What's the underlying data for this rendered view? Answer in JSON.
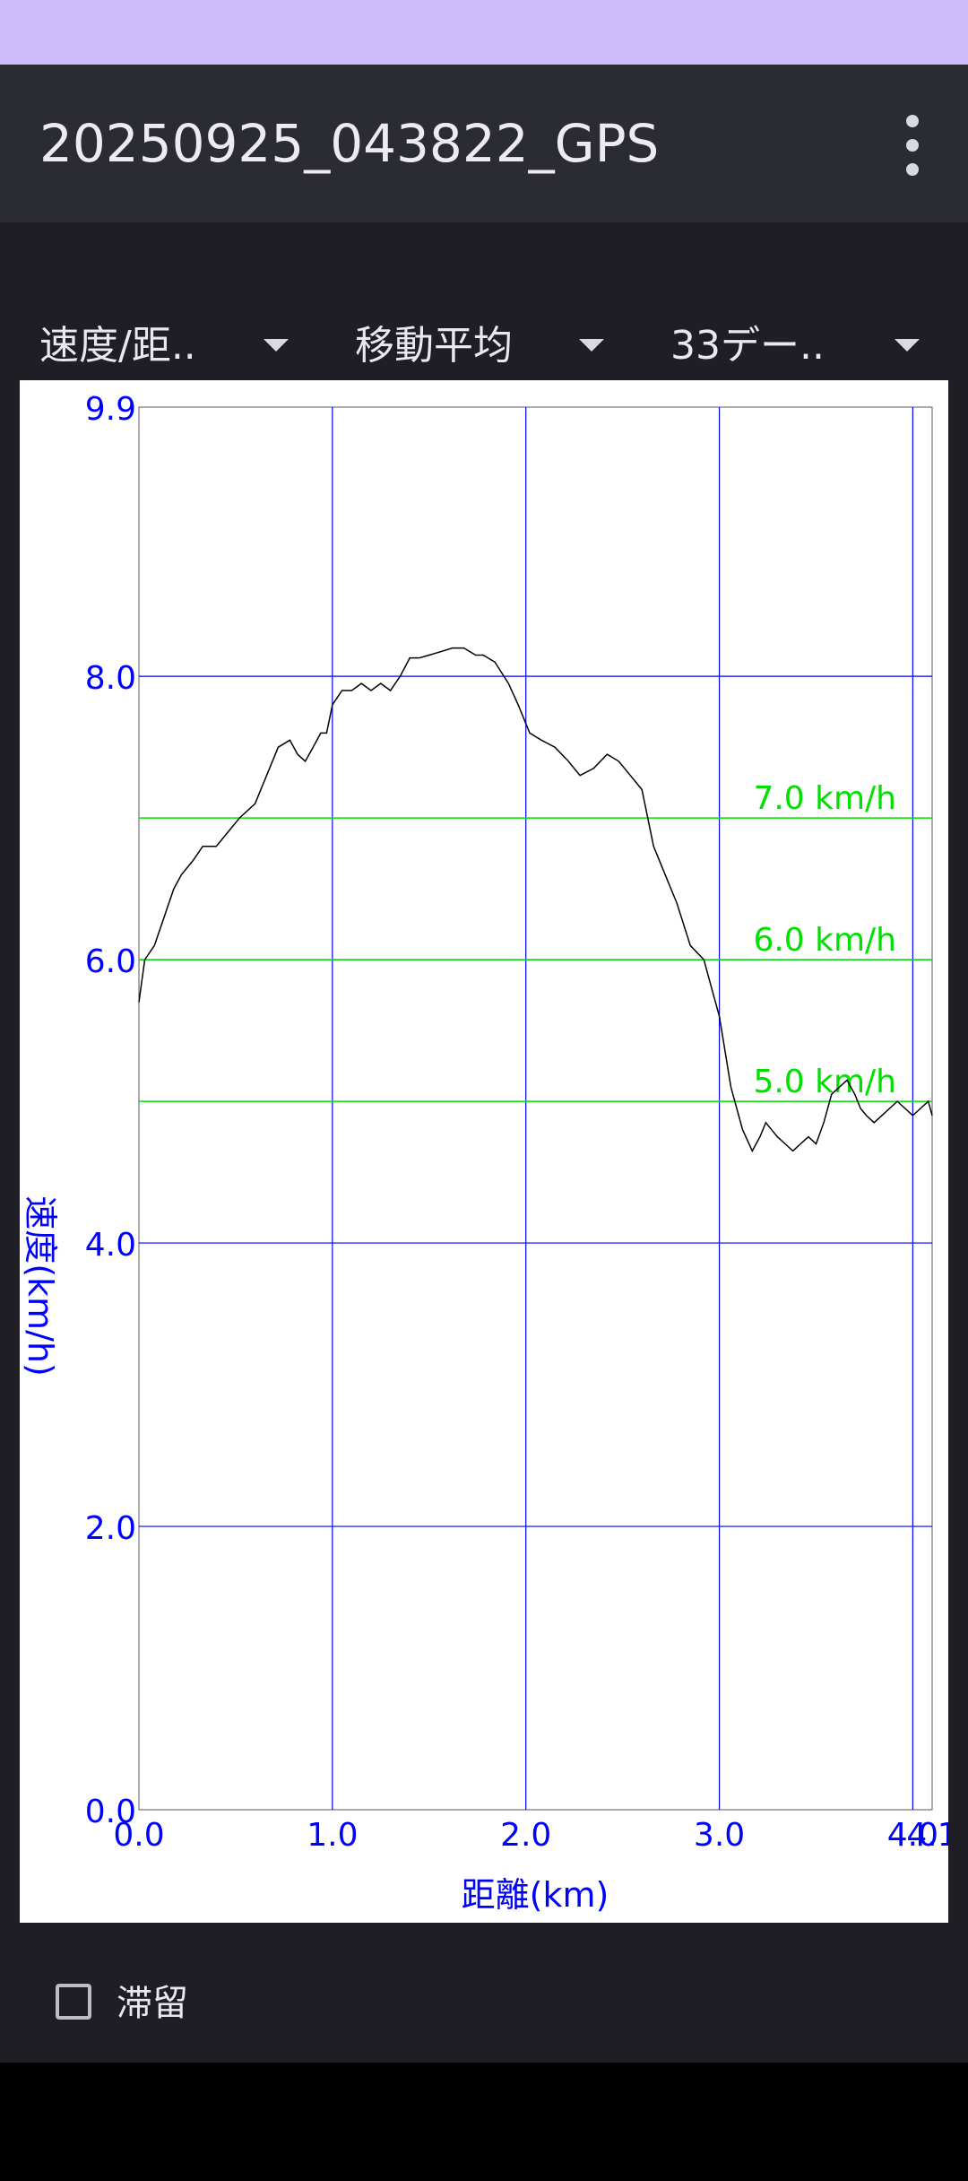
{
  "app_bar": {
    "title": "20250925_043822_GPS",
    "menu_icon": "more-vert-icon"
  },
  "spinners": [
    {
      "label": "速度/距.."
    },
    {
      "label": "移動平均"
    },
    {
      "label": "33デー.."
    }
  ],
  "checkbox": {
    "label": "滞留",
    "checked": false
  },
  "colors": {
    "axis": "#0000ff",
    "reference_line": "#00e000",
    "plot_line": "#000000"
  },
  "chart_data": {
    "type": "line",
    "xlabel": "距離(km)",
    "ylabel": "速度(km/h)",
    "xlim": [
      0,
      4.1
    ],
    "ylim": [
      0,
      9.9
    ],
    "x_ticks": [
      "0.0",
      "1.0",
      "2.0",
      "3.0",
      "4.0",
      "4.1"
    ],
    "y_ticks": [
      "0.0",
      "2.0",
      "4.0",
      "6.0",
      "8.0",
      "9.9"
    ],
    "reference_lines": [
      {
        "value": 7.0,
        "label": "7.0 km/h"
      },
      {
        "value": 6.0,
        "label": "6.0 km/h"
      },
      {
        "value": 5.0,
        "label": "5.0 km/h"
      }
    ],
    "grid": true,
    "series": [
      {
        "x": [
          0.0,
          0.03,
          0.08,
          0.13,
          0.18,
          0.22,
          0.28,
          0.33,
          0.4,
          0.46,
          0.52,
          0.6,
          0.66,
          0.72,
          0.78,
          0.82,
          0.86,
          0.9,
          0.94,
          0.97,
          1.0,
          1.05,
          1.1,
          1.15,
          1.2,
          1.25,
          1.3,
          1.35,
          1.4,
          1.45,
          1.5,
          1.55,
          1.62,
          1.68,
          1.74,
          1.78,
          1.84,
          1.91,
          1.96,
          2.02,
          2.08,
          2.15,
          2.22,
          2.28,
          2.35,
          2.42,
          2.48,
          2.54,
          2.6,
          2.66,
          2.72,
          2.78,
          2.85,
          2.92,
          2.96,
          3.0,
          3.06,
          3.12,
          3.17,
          3.21,
          3.24,
          3.27,
          3.3,
          3.34,
          3.38,
          3.42,
          3.46,
          3.5,
          3.54,
          3.58,
          3.62,
          3.66,
          3.7,
          3.73,
          3.76,
          3.8,
          3.84,
          3.88,
          3.92,
          3.96,
          4.0,
          4.04,
          4.08,
          4.1
        ],
        "y": [
          5.7,
          6.0,
          6.1,
          6.3,
          6.5,
          6.6,
          6.7,
          6.8,
          6.8,
          6.9,
          7.0,
          7.1,
          7.3,
          7.5,
          7.55,
          7.45,
          7.4,
          7.5,
          7.6,
          7.6,
          7.8,
          7.9,
          7.9,
          7.95,
          7.9,
          7.95,
          7.9,
          8.0,
          8.13,
          8.13,
          8.15,
          8.17,
          8.2,
          8.2,
          8.15,
          8.15,
          8.1,
          7.95,
          7.8,
          7.6,
          7.55,
          7.5,
          7.4,
          7.3,
          7.35,
          7.45,
          7.4,
          7.3,
          7.2,
          6.8,
          6.6,
          6.4,
          6.1,
          6.0,
          5.8,
          5.6,
          5.1,
          4.8,
          4.65,
          4.75,
          4.85,
          4.8,
          4.75,
          4.7,
          4.65,
          4.7,
          4.75,
          4.7,
          4.85,
          5.05,
          5.1,
          5.15,
          5.05,
          4.95,
          4.9,
          4.85,
          4.9,
          4.95,
          5.0,
          4.95,
          4.9,
          4.95,
          5.0,
          4.9
        ]
      }
    ]
  }
}
